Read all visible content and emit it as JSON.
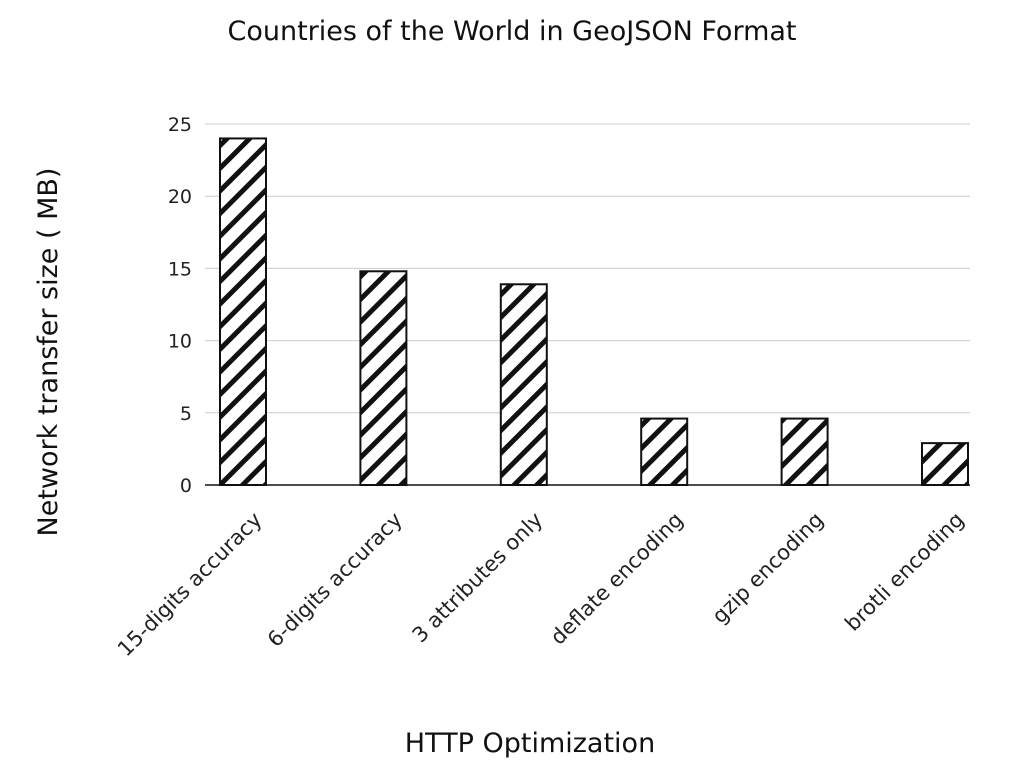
{
  "chart_data": {
    "type": "bar",
    "title": "Countries of the World in GeoJSON Format",
    "xlabel": "HTTP Optimization",
    "ylabel": "Network transfer size ( MB)",
    "categories": [
      "15-digits accuracy",
      "6-digits accuracy",
      "3 attributes only",
      "deflate encoding",
      "gzip encoding",
      "brotli encoding"
    ],
    "values": [
      24.0,
      14.8,
      13.9,
      4.6,
      4.6,
      2.9
    ],
    "yticks": [
      0,
      5,
      10,
      15,
      20,
      25
    ],
    "ylim": [
      0,
      25
    ],
    "grid": true,
    "legend": "none",
    "bar_fill": "diagonal-hatch",
    "colors": {
      "bar_stroke": "#111111",
      "hatch": "#111111",
      "grid": "#cccccc",
      "axis": "#111111",
      "background": "#ffffff"
    }
  }
}
